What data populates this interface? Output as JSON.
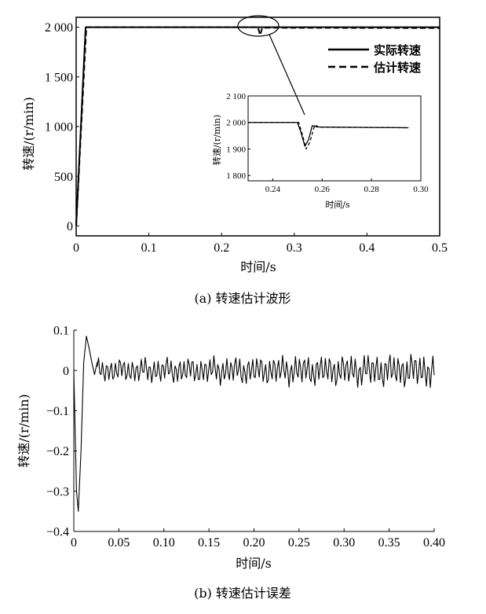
{
  "chart_data": [
    {
      "type": "line",
      "ylabel": "转速/(r/min)",
      "xlabel": "时间/s",
      "caption": "(a) 转速估计波形",
      "xlim": [
        0,
        0.5
      ],
      "ylim": [
        -100,
        2100
      ],
      "x_ticks": [
        "0",
        "0.1",
        "0.2",
        "0.3",
        "0.4",
        "0.5"
      ],
      "y_ticks": [
        "0",
        "500",
        "1 000",
        "1 500",
        "2 000"
      ],
      "legend_position": "right",
      "series": [
        {
          "name": "实际转速",
          "style": "solid",
          "points": [
            [
              0,
              0
            ],
            [
              0.013,
              2000
            ],
            [
              0.5,
              2000
            ]
          ]
        },
        {
          "name": "估计转速",
          "style": "dashed",
          "points": [
            [
              0,
              0
            ],
            [
              0.014,
              2000
            ],
            [
              0.25,
              2000
            ],
            [
              0.253,
              1920
            ],
            [
              0.256,
              1995
            ],
            [
              0.5,
              1992
            ]
          ]
        }
      ],
      "inset": {
        "xlim": [
          0.23,
          0.3
        ],
        "ylim": [
          1780,
          2100
        ],
        "x_ticks": [
          "0.24",
          "0.26",
          "0.28",
          "0.30"
        ],
        "y_ticks": [
          "1 800",
          "1 900",
          "2 000",
          "2 100"
        ],
        "ylabel": "转速/(r/min)",
        "xlabel": "时间/s",
        "series": [
          {
            "style": "solid",
            "points": [
              [
                0.23,
                2000
              ],
              [
                0.25,
                2000
              ],
              [
                0.2515,
                1960
              ],
              [
                0.253,
                1910
              ],
              [
                0.2545,
                1935
              ],
              [
                0.256,
                1988
              ],
              [
                0.258,
                1983
              ],
              [
                0.295,
                1980
              ]
            ]
          },
          {
            "style": "dashed",
            "points": [
              [
                0.23,
                2000
              ],
              [
                0.2505,
                2000
              ],
              [
                0.252,
                1955
              ],
              [
                0.2535,
                1900
              ],
              [
                0.255,
                1925
              ],
              [
                0.257,
                1990
              ],
              [
                0.259,
                1982
              ],
              [
                0.295,
                1980
              ]
            ]
          }
        ]
      }
    },
    {
      "type": "line",
      "ylabel": "转速/(r/min)",
      "xlabel": "时间/s",
      "caption": "(b) 转速估计误差",
      "xlim": [
        0,
        0.4
      ],
      "ylim": [
        -0.4,
        0.1
      ],
      "x_ticks": [
        "0",
        "0.05",
        "0.10",
        "0.15",
        "0.20",
        "0.25",
        "0.30",
        "0.35",
        "0.40"
      ],
      "y_ticks": [
        "0.1",
        "0",
        "−0.1",
        "−0.2",
        "−0.3",
        "−0.4"
      ],
      "series": [
        {
          "style": "solid",
          "points": [
            [
              0,
              0
            ],
            [
              0.003,
              -0.3
            ],
            [
              0.005,
              -0.35
            ],
            [
              0.008,
              -0.2
            ],
            [
              0.011,
              0.02
            ],
            [
              0.014,
              0.085
            ],
            [
              0.017,
              0.055
            ],
            [
              0.02,
              0.02
            ],
            [
              0.023,
              -0.01
            ],
            [
              0.026,
              0.02
            ],
            [
              0.4,
              0.0
            ]
          ],
          "steady_oscillation": {
            "from": 0.026,
            "to": 0.4,
            "amplitude_start": 0.03,
            "amplitude_end": 0.045
          }
        }
      ]
    }
  ]
}
